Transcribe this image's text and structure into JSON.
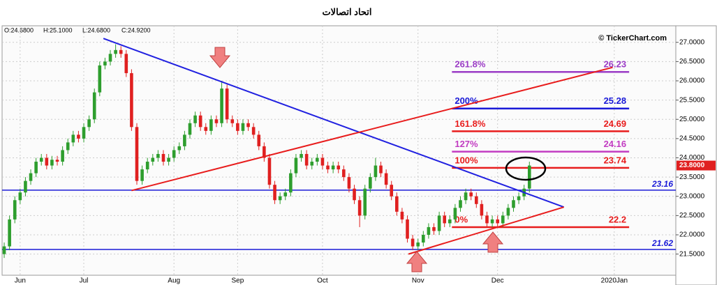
{
  "chart_data": {
    "type": "candlestick",
    "title": "اتحاد اتصالات",
    "ohlc_header": [
      "O:24.6800",
      "H:25.1000",
      "L:24.6800",
      "C:24.9200"
    ],
    "watermark": "© TickerChart.com",
    "up_color": "#2e9e2e",
    "down_color": "#e02020",
    "xlim": [
      -0.4,
      126.6
    ],
    "xticks": [
      {
        "value": 3,
        "label": "Jun"
      },
      {
        "value": 15,
        "label": "Jul"
      },
      {
        "value": 32,
        "label": "Aug"
      },
      {
        "value": 44,
        "label": "Sep"
      },
      {
        "value": 60,
        "label": "Oct"
      },
      {
        "value": 78,
        "label": "Nov"
      },
      {
        "value": 93,
        "label": "Dec"
      },
      {
        "value": 115,
        "label": "2020Jan"
      }
    ],
    "ylim": [
      20.95,
      27.43
    ],
    "yticks": [
      {
        "value": 21.5,
        "label": "21.5000"
      },
      {
        "value": 22,
        "label": "22.0000"
      },
      {
        "value": 22.5,
        "label": "22.5000"
      },
      {
        "value": 23,
        "label": "23.0000"
      },
      {
        "value": 23.5,
        "label": "23.5000"
      },
      {
        "value": 24,
        "label": "24.0000"
      },
      {
        "value": 24.5,
        "label": "24.5000"
      },
      {
        "value": 25,
        "label": "25.0000"
      },
      {
        "value": 25.5,
        "label": "25.5000"
      },
      {
        "value": 26,
        "label": "26.0000"
      },
      {
        "value": 26.5,
        "label": "26.5000"
      },
      {
        "value": 27,
        "label": "27.0000"
      }
    ],
    "grid": true,
    "open": [
      21.5,
      21.7,
      22.4,
      22.9,
      23.1,
      23.4,
      23.6,
      23.9,
      24.0,
      23.8,
      23.95,
      23.9,
      24.2,
      24.4,
      24.6,
      24.5,
      24.8,
      25.0,
      25.7,
      26.4,
      26.5,
      26.7,
      26.8,
      26.7,
      26.2,
      24.8,
      23.4,
      23.7,
      23.9,
      24.0,
      24.1,
      23.9,
      24.0,
      24.2,
      24.3,
      24.6,
      24.9,
      25.1,
      24.8,
      24.7,
      25.0,
      24.9,
      25.8,
      25.0,
      24.9,
      24.7,
      24.9,
      24.8,
      24.6,
      24.3,
      24.0,
      23.3,
      22.9,
      23.0,
      23.1,
      23.6,
      24.0,
      24.1,
      23.8,
      23.9,
      24.0,
      23.8,
      23.7,
      23.8,
      23.7,
      23.5,
      23.2,
      22.9,
      22.5,
      23.2,
      23.5,
      23.8,
      23.6,
      23.3,
      23.0,
      22.6,
      22.4,
      21.9,
      21.7,
      21.8,
      22.0,
      22.2,
      22.1,
      22.5,
      22.3,
      22.4,
      22.7,
      22.9,
      23.1,
      23.0,
      22.8,
      22.5,
      22.3,
      22.4,
      22.3,
      22.5,
      22.7,
      22.9,
      23.0,
      23.2
    ],
    "high": [
      21.8,
      22.5,
      23.0,
      23.2,
      23.5,
      23.7,
      24.0,
      24.1,
      24.1,
      24.05,
      24.05,
      24.3,
      24.5,
      24.7,
      24.7,
      24.9,
      25.1,
      25.8,
      26.5,
      26.6,
      26.8,
      26.95,
      26.9,
      26.8,
      26.3,
      24.9,
      23.8,
      24.0,
      24.1,
      24.2,
      24.2,
      24.1,
      24.3,
      24.4,
      24.7,
      25.0,
      25.2,
      25.2,
      24.9,
      25.1,
      25.1,
      26.0,
      25.9,
      25.1,
      25.0,
      25.0,
      25.0,
      24.9,
      24.7,
      24.4,
      24.1,
      23.4,
      23.1,
      23.2,
      23.7,
      24.1,
      24.2,
      24.2,
      24.0,
      24.1,
      24.1,
      23.9,
      23.9,
      23.9,
      23.8,
      23.6,
      23.3,
      23.0,
      23.3,
      23.6,
      24.0,
      23.9,
      23.7,
      23.4,
      23.1,
      22.7,
      22.5,
      22.0,
      21.9,
      22.1,
      22.3,
      22.3,
      22.6,
      22.6,
      22.5,
      22.8,
      23.0,
      23.2,
      23.2,
      23.1,
      22.9,
      22.6,
      22.5,
      22.5,
      22.6,
      22.8,
      23.0,
      23.1,
      23.3,
      23.9
    ],
    "low": [
      21.4,
      21.6,
      22.3,
      22.8,
      23.0,
      23.3,
      23.5,
      23.8,
      23.7,
      23.7,
      23.8,
      23.8,
      24.1,
      24.3,
      24.4,
      24.4,
      24.7,
      24.9,
      25.6,
      26.3,
      26.4,
      26.6,
      26.6,
      26.1,
      24.7,
      23.3,
      23.3,
      23.6,
      23.8,
      23.9,
      23.8,
      23.8,
      23.9,
      24.1,
      24.2,
      24.5,
      24.8,
      24.7,
      24.6,
      24.6,
      24.8,
      24.8,
      24.9,
      24.8,
      24.6,
      24.6,
      24.7,
      24.5,
      24.2,
      23.9,
      23.2,
      22.8,
      22.8,
      22.9,
      23.0,
      23.5,
      23.9,
      23.7,
      23.7,
      23.8,
      23.7,
      23.6,
      23.6,
      23.6,
      23.4,
      23.1,
      22.8,
      22.2,
      22.4,
      23.1,
      23.4,
      23.5,
      23.2,
      22.9,
      22.5,
      22.3,
      21.8,
      21.6,
      21.6,
      21.7,
      21.9,
      22.0,
      22.0,
      22.2,
      22.2,
      22.3,
      22.6,
      22.8,
      22.9,
      22.7,
      22.4,
      22.2,
      22.2,
      22.2,
      22.2,
      22.4,
      22.6,
      22.8,
      22.9,
      23.1
    ],
    "close": [
      21.7,
      22.4,
      22.9,
      23.1,
      23.4,
      23.6,
      23.9,
      24.0,
      23.8,
      23.95,
      23.9,
      24.2,
      24.4,
      24.6,
      24.5,
      24.8,
      25.0,
      25.7,
      26.4,
      26.5,
      26.7,
      26.8,
      26.7,
      26.2,
      24.8,
      23.4,
      23.7,
      23.9,
      24.0,
      24.1,
      23.9,
      24.0,
      24.2,
      24.3,
      24.6,
      24.9,
      25.1,
      24.8,
      24.7,
      25.0,
      24.9,
      25.8,
      25.0,
      24.9,
      24.7,
      24.9,
      24.8,
      24.6,
      24.3,
      24.0,
      23.3,
      22.9,
      23.0,
      23.1,
      23.6,
      24.0,
      24.1,
      23.8,
      23.9,
      24.0,
      23.8,
      23.7,
      23.8,
      23.7,
      23.5,
      23.2,
      22.9,
      22.5,
      23.2,
      23.5,
      23.8,
      23.6,
      23.3,
      23.0,
      22.6,
      22.4,
      21.9,
      21.7,
      21.8,
      22.0,
      22.2,
      22.1,
      22.5,
      22.3,
      22.4,
      22.7,
      22.9,
      23.1,
      23.0,
      22.8,
      22.5,
      22.3,
      22.4,
      22.3,
      22.5,
      22.7,
      22.9,
      23.0,
      23.2,
      23.8
    ],
    "last_price": {
      "value": 23.8,
      "label": "23.8000"
    },
    "hlines": [
      {
        "value": 23.16,
        "color": "#1a1ad8"
      },
      {
        "value": 21.62,
        "color": "#1a1ad8"
      }
    ],
    "trendlines": [
      {
        "color": "#2020e0",
        "points": [
          [
            18.7,
            27.1
          ],
          [
            105.5,
            22.72
          ]
        ]
      },
      {
        "color": "#e81c1c",
        "points": [
          [
            24.0,
            23.15
          ],
          [
            114.7,
            26.35
          ]
        ]
      },
      {
        "color": "#e81c1c",
        "points": [
          [
            76.2,
            21.5
          ],
          [
            105.5,
            22.72
          ]
        ]
      }
    ],
    "fib_range": [
      84.4,
      117.8
    ],
    "fib_levels": [
      {
        "label": "0%",
        "value": 22.2,
        "color": "#e81c1c"
      },
      {
        "label": "100%",
        "value": 23.74,
        "color": "#e81c1c"
      },
      {
        "label": "127%",
        "value": 24.16,
        "color": "#c23cc2"
      },
      {
        "label": "161.8%",
        "value": 24.69,
        "color": "#e81c1c"
      },
      {
        "label": "200%",
        "value": 25.28,
        "color": "#1a1ad8"
      },
      {
        "label": "261.8%",
        "value": 26.23,
        "color": "#9b3cc6"
      }
    ]
  }
}
